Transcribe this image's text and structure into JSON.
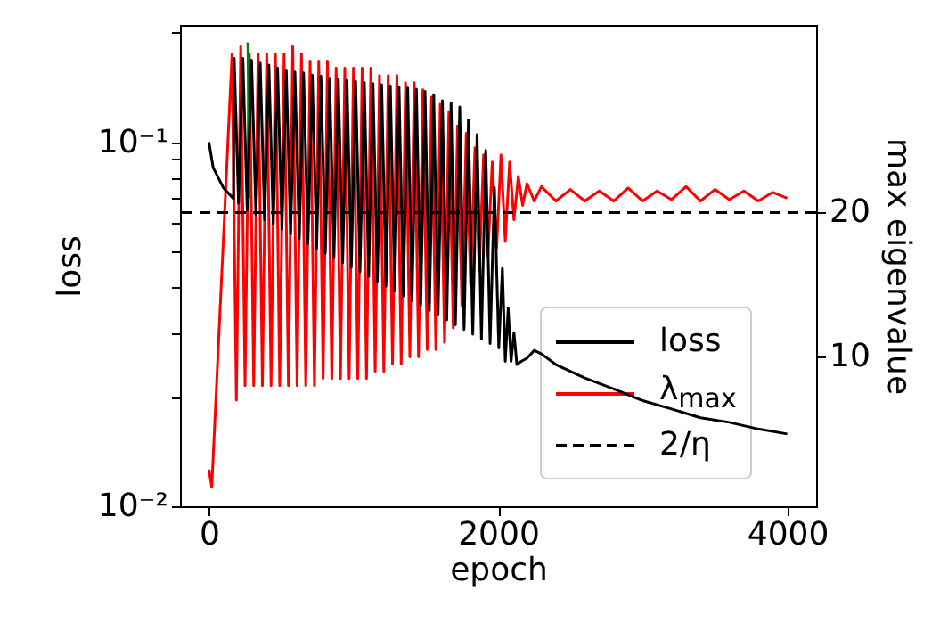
{
  "chart_data": {
    "type": "line",
    "xlabel": "epoch",
    "ylabel": "loss",
    "y2label": "max eigenvalue",
    "xlim": [
      -200,
      4200
    ],
    "xticks": [
      0,
      2000,
      4000
    ],
    "ylim": [
      0.01,
      0.21
    ],
    "log": "y",
    "yticks": [
      {
        "value": 0.01,
        "label": "10⁻²"
      },
      {
        "value": 0.02,
        "label": null
      },
      {
        "value": 0.03,
        "label": null
      },
      {
        "value": 0.04,
        "label": null
      },
      {
        "value": 0.05,
        "label": null
      },
      {
        "value": 0.06,
        "label": null
      },
      {
        "value": 0.07,
        "label": null
      },
      {
        "value": 0.08,
        "label": null
      },
      {
        "value": 0.09,
        "label": null
      },
      {
        "value": 0.1,
        "label": "10⁻¹"
      },
      {
        "value": 0.2,
        "label": null
      }
    ],
    "y2lim": [
      -0.35,
      33
    ],
    "y2ticks": [
      10,
      20
    ],
    "grid": false,
    "legend": "bottom right",
    "line_style": "solid",
    "marker": "none",
    "series": [
      {
        "name": "loss",
        "color": "#000000",
        "x": [
          0,
          30,
          100,
          170,
          175,
          205,
          235,
          265,
          295,
          325,
          355,
          385,
          415,
          445,
          475,
          505,
          535,
          565,
          595,
          625,
          655,
          685,
          715,
          745,
          775,
          805,
          835,
          865,
          895,
          925,
          955,
          985,
          1015,
          1045,
          1075,
          1105,
          1135,
          1165,
          1195,
          1225,
          1255,
          1285,
          1315,
          1345,
          1375,
          1405,
          1435,
          1465,
          1495,
          1525,
          1555,
          1585,
          1615,
          1645,
          1675,
          1705,
          1735,
          1765,
          1795,
          1825,
          1855,
          1885,
          1915,
          1945,
          1975,
          2005,
          2030,
          2050,
          2070,
          2090,
          2110,
          2130,
          2160,
          2200,
          2250,
          2300,
          2400,
          2600,
          2800,
          3000,
          3200,
          3400,
          3600,
          3800,
          4000
        ],
        "values": [
          0.1,
          0.085,
          0.075,
          0.07,
          0.17,
          0.068,
          0.17,
          0.065,
          0.168,
          0.0632,
          0.165,
          0.0613,
          0.163,
          0.0595,
          0.16,
          0.0577,
          0.158,
          0.056,
          0.156,
          0.0543,
          0.155,
          0.0527,
          0.153,
          0.0511,
          0.152,
          0.0496,
          0.15,
          0.0481,
          0.149,
          0.0467,
          0.148,
          0.0453,
          0.147,
          0.044,
          0.146,
          0.0427,
          0.145,
          0.0414,
          0.144,
          0.0402,
          0.143,
          0.039,
          0.142,
          0.0378,
          0.141,
          0.0367,
          0.14,
          0.0356,
          0.138,
          0.0345,
          0.135,
          0.0335,
          0.13,
          0.0325,
          0.128,
          0.0315,
          0.125,
          0.0306,
          0.115,
          0.0297,
          0.105,
          0.0288,
          0.095,
          0.028,
          0.075,
          0.0272,
          0.045,
          0.025,
          0.035,
          0.025,
          0.03,
          0.0245,
          0.025,
          0.0255,
          0.0268,
          0.0262,
          0.0245,
          0.0225,
          0.021,
          0.0195,
          0.0185,
          0.0175,
          0.017,
          0.0163,
          0.0158
        ]
      },
      {
        "name": "λ$_{max}$",
        "color": "#ff0000",
        "axis": "y2",
        "x": [
          0,
          20,
          160,
          190,
          220,
          250,
          280,
          310,
          340,
          370,
          400,
          430,
          460,
          490,
          520,
          550,
          580,
          610,
          640,
          670,
          700,
          730,
          760,
          790,
          820,
          850,
          880,
          910,
          940,
          970,
          1000,
          1030,
          1060,
          1090,
          1120,
          1150,
          1180,
          1210,
          1240,
          1270,
          1300,
          1330,
          1360,
          1390,
          1420,
          1450,
          1480,
          1510,
          1540,
          1570,
          1600,
          1630,
          1660,
          1690,
          1720,
          1750,
          1780,
          1810,
          1840,
          1870,
          1900,
          1930,
          1960,
          1990,
          2020,
          2050,
          2080,
          2110,
          2140,
          2170,
          2200,
          2250,
          2300,
          2400,
          2500,
          2600,
          2700,
          2800,
          2900,
          3000,
          3100,
          3200,
          3300,
          3400,
          3500,
          3600,
          3700,
          3800,
          3900,
          4000
        ],
        "values": [
          2.2,
          1.0,
          31,
          7,
          31.5,
          8,
          31,
          8,
          31,
          8,
          31,
          8,
          31,
          8,
          31,
          8,
          31.5,
          8,
          31,
          8,
          30.5,
          8,
          30.5,
          8.5,
          30.5,
          8.5,
          30,
          8.5,
          30,
          8.5,
          30,
          8.5,
          30,
          8.5,
          30,
          9,
          29.5,
          9,
          29.5,
          9.5,
          29.5,
          9.5,
          29,
          10,
          29,
          10,
          28.5,
          10.5,
          28,
          10.5,
          27.5,
          11,
          27,
          12,
          26,
          13.5,
          25.5,
          15,
          24.5,
          16,
          24,
          17,
          23.5,
          17.5,
          24,
          18,
          23.5,
          19.5,
          22.5,
          20.5,
          22,
          20.8,
          21.8,
          20.8,
          21.6,
          20.8,
          21.5,
          20.8,
          21.7,
          20.8,
          21.5,
          20.9,
          21.8,
          20.8,
          21.6,
          20.9,
          21.5,
          20.8,
          21.4,
          21
        ]
      },
      {
        "color": "#008000",
        "axis": "y2",
        "x": [
          270,
          280
        ],
        "values": [
          31.8,
          21
        ]
      }
    ],
    "ref_lines": [
      {
        "axis": "y2",
        "value": 20,
        "label": "2/η",
        "color": "#000000",
        "line_style": "dashed"
      }
    ]
  }
}
